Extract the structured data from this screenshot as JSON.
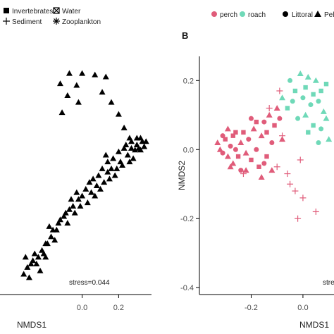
{
  "chart_data": [
    {
      "type": "scatter",
      "panel_letter": "",
      "xlabel": "NMDS1",
      "ylabel": "",
      "x_ticks": [
        "0.0",
        "0.2"
      ],
      "x_tick_values": [
        0.0,
        0.2
      ],
      "xlim": [
        -0.45,
        0.38
      ],
      "ylim": [
        -0.38,
        0.32
      ],
      "legend": [
        "Invertebrates",
        "Water",
        "Sediment",
        "Zooplankton"
      ],
      "legend_placement": "top",
      "annotation": "stress=0.044",
      "series": [
        {
          "name": "Zooplankton",
          "marker": "triangle",
          "color": "#000000",
          "points": [
            [
              0.0,
              0.27
            ],
            [
              0.07,
              0.266
            ],
            [
              0.13,
              0.26
            ],
            [
              -0.07,
              0.27
            ],
            [
              -0.03,
              0.235
            ],
            [
              -0.12,
              0.24
            ],
            [
              -0.08,
              0.205
            ],
            [
              -0.02,
              0.185
            ],
            [
              -0.11,
              0.155
            ],
            [
              0.11,
              0.215
            ],
            [
              0.16,
              0.185
            ],
            [
              0.2,
              0.15
            ],
            [
              0.23,
              0.11
            ],
            [
              0.26,
              0.08
            ],
            [
              0.3,
              0.08
            ],
            [
              0.31,
              0.05
            ],
            [
              0.33,
              0.07
            ],
            [
              0.35,
              0.07
            ],
            [
              0.27,
              0.05
            ],
            [
              0.29,
              0.045
            ],
            [
              0.32,
              0.045
            ],
            [
              0.34,
              0.055
            ],
            [
              0.28,
              0.02
            ],
            [
              0.25,
              0.03
            ],
            [
              0.22,
              0.0
            ],
            [
              0.19,
              -0.01
            ],
            [
              0.16,
              -0.01
            ],
            [
              0.18,
              -0.03
            ],
            [
              0.14,
              -0.02
            ],
            [
              0.12,
              -0.05
            ],
            [
              0.08,
              -0.06
            ],
            [
              0.05,
              -0.08
            ],
            [
              0.0,
              -0.09
            ],
            [
              -0.02,
              -0.1
            ],
            [
              -0.05,
              -0.12
            ],
            [
              -0.07,
              -0.13
            ],
            [
              -0.1,
              -0.15
            ],
            [
              -0.13,
              -0.17
            ],
            [
              -0.16,
              -0.19
            ],
            [
              -0.2,
              -0.23
            ],
            [
              -0.22,
              -0.25
            ],
            [
              -0.24,
              -0.27
            ],
            [
              -0.26,
              -0.26
            ],
            [
              -0.28,
              -0.29
            ],
            [
              -0.3,
              -0.3
            ],
            [
              -0.25,
              -0.29
            ],
            [
              -0.21,
              -0.26
            ],
            [
              -0.23,
              -0.31
            ],
            [
              -0.27,
              -0.28
            ],
            [
              -0.31,
              -0.27
            ],
            [
              -0.19,
              -0.23
            ],
            [
              -0.17,
              -0.21
            ],
            [
              -0.14,
              -0.19
            ],
            [
              -0.12,
              -0.16
            ],
            [
              -0.09,
              -0.14
            ],
            [
              -0.06,
              -0.1
            ],
            [
              -0.03,
              -0.08
            ],
            [
              0.02,
              -0.07
            ],
            [
              0.06,
              -0.04
            ],
            [
              0.09,
              -0.03
            ],
            [
              0.11,
              -0.01
            ],
            [
              0.14,
              0.01
            ],
            [
              0.17,
              0.02
            ],
            [
              0.2,
              0.04
            ],
            [
              0.23,
              0.05
            ],
            [
              0.15,
              -0.04
            ],
            [
              0.1,
              -0.07
            ],
            [
              0.07,
              -0.09
            ],
            [
              0.03,
              -0.11
            ],
            [
              -0.01,
              -0.12
            ],
            [
              -0.08,
              -0.17
            ],
            [
              -0.15,
              -0.22
            ],
            [
              -0.2,
              -0.27
            ],
            [
              -0.29,
              -0.33
            ],
            [
              -0.32,
              -0.32
            ],
            [
              -0.18,
              -0.18
            ],
            [
              -0.04,
              -0.14
            ],
            [
              0.04,
              -0.05
            ],
            [
              0.13,
              0.03
            ],
            [
              0.21,
              0.01
            ],
            [
              0.24,
              0.06
            ],
            [
              0.27,
              0.07
            ],
            [
              0.3,
              0.06
            ],
            [
              0.32,
              0.08
            ],
            [
              0.26,
              0.01
            ]
          ]
        }
      ]
    },
    {
      "type": "scatter",
      "panel_letter": "B",
      "xlabel": "NMDS1",
      "ylabel": "NMDS2",
      "x_ticks": [
        "-0.2",
        "0.0"
      ],
      "x_tick_values": [
        -0.2,
        0.0
      ],
      "y_ticks": [
        "0.2",
        "0.0",
        "-0.2",
        "-0.4"
      ],
      "y_tick_values": [
        0.2,
        0.0,
        -0.2,
        -0.4
      ],
      "xlim": [
        -0.4,
        0.12
      ],
      "ylim": [
        -0.42,
        0.27
      ],
      "legend": [
        "perch",
        "roach",
        "Littoral",
        "Pelagic"
      ],
      "legend_placement": "top",
      "colors": {
        "perch": "#e05c7a",
        "roach": "#6fd9b8"
      },
      "annotation": "stress",
      "series": [
        {
          "name": "perch",
          "color": "#e05c7a",
          "points": [
            [
              -0.33,
              0.02,
              "triangle"
            ],
            [
              -0.32,
              0.0,
              "triangle"
            ],
            [
              -0.31,
              -0.01,
              "circle"
            ],
            [
              -0.3,
              0.03,
              "square"
            ],
            [
              -0.29,
              -0.02,
              "triangle"
            ],
            [
              -0.28,
              0.01,
              "circle"
            ],
            [
              -0.27,
              0.04,
              "square"
            ],
            [
              -0.27,
              -0.04,
              "triangle"
            ],
            [
              -0.26,
              0.0,
              "circle"
            ],
            [
              -0.25,
              -0.02,
              "square"
            ],
            [
              -0.24,
              0.02,
              "triangle"
            ],
            [
              -0.24,
              -0.06,
              "circle"
            ],
            [
              -0.23,
              0.05,
              "square"
            ],
            [
              -0.22,
              -0.01,
              "triangle"
            ],
            [
              -0.21,
              0.03,
              "circle"
            ],
            [
              -0.2,
              -0.03,
              "square"
            ],
            [
              -0.19,
              0.06,
              "triangle"
            ],
            [
              -0.18,
              0.0,
              "circle"
            ],
            [
              -0.17,
              -0.05,
              "square"
            ],
            [
              -0.16,
              0.04,
              "triangle"
            ],
            [
              -0.15,
              0.08,
              "circle"
            ],
            [
              -0.14,
              -0.02,
              "square"
            ],
            [
              -0.13,
              0.1,
              "triangle"
            ],
            [
              -0.12,
              0.02,
              "circle"
            ],
            [
              -0.11,
              0.07,
              "square"
            ],
            [
              -0.1,
              0.12,
              "triangle"
            ],
            [
              -0.09,
              0.09,
              "circle"
            ],
            [
              -0.28,
              -0.05,
              "triangle"
            ],
            [
              -0.26,
              0.05,
              "square"
            ],
            [
              -0.22,
              -0.06,
              "triangle"
            ],
            [
              -0.18,
              0.08,
              "square"
            ],
            [
              -0.15,
              -0.04,
              "circle"
            ],
            [
              -0.12,
              -0.06,
              "triangle"
            ],
            [
              -0.31,
              0.04,
              "circle"
            ],
            [
              -0.29,
              0.06,
              "triangle"
            ],
            [
              -0.2,
              0.09,
              "circle"
            ],
            [
              -0.16,
              -0.08,
              "triangle"
            ],
            [
              -0.14,
              0.05,
              "square"
            ],
            [
              -0.08,
              0.03,
              "triangle"
            ]
          ]
        },
        {
          "name": "roach",
          "color": "#6fd9b8",
          "points": [
            [
              -0.05,
              0.2,
              "circle"
            ],
            [
              -0.03,
              0.17,
              "square"
            ],
            [
              -0.01,
              0.22,
              "triangle"
            ],
            [
              0.0,
              0.15,
              "circle"
            ],
            [
              0.01,
              0.18,
              "square"
            ],
            [
              0.02,
              0.21,
              "triangle"
            ],
            [
              0.03,
              0.13,
              "circle"
            ],
            [
              0.04,
              0.16,
              "square"
            ],
            [
              0.05,
              0.2,
              "triangle"
            ],
            [
              0.06,
              0.14,
              "circle"
            ],
            [
              0.07,
              0.17,
              "square"
            ],
            [
              0.08,
              0.11,
              "triangle"
            ],
            [
              -0.06,
              0.12,
              "square"
            ],
            [
              -0.08,
              0.15,
              "triangle"
            ],
            [
              -0.02,
              0.09,
              "circle"
            ],
            [
              0.01,
              0.1,
              "triangle"
            ],
            [
              0.04,
              0.07,
              "square"
            ],
            [
              0.07,
              0.06,
              "circle"
            ],
            [
              0.09,
              0.19,
              "square"
            ],
            [
              0.09,
              0.09,
              "triangle"
            ],
            [
              -0.04,
              0.14,
              "circle"
            ],
            [
              0.02,
              0.05,
              "square"
            ],
            [
              0.06,
              0.02,
              "circle"
            ],
            [
              0.1,
              0.03,
              "triangle"
            ]
          ]
        },
        {
          "name": "sediment",
          "color": "#e05c7a",
          "points": [
            [
              -0.1,
              -0.05,
              "plus"
            ],
            [
              -0.05,
              -0.1,
              "plus"
            ],
            [
              -0.03,
              -0.12,
              "plus"
            ],
            [
              0.0,
              -0.14,
              "plus"
            ],
            [
              -0.02,
              -0.2,
              "plus"
            ],
            [
              -0.13,
              0.12,
              "plus"
            ],
            [
              -0.09,
              0.17,
              "plus"
            ],
            [
              -0.06,
              -0.07,
              "plus"
            ],
            [
              -0.23,
              -0.07,
              "plus"
            ],
            [
              -0.01,
              -0.03,
              "plus"
            ],
            [
              0.05,
              -0.18,
              "plus"
            ],
            [
              -0.08,
              0.04,
              "plus"
            ]
          ]
        }
      ]
    }
  ]
}
